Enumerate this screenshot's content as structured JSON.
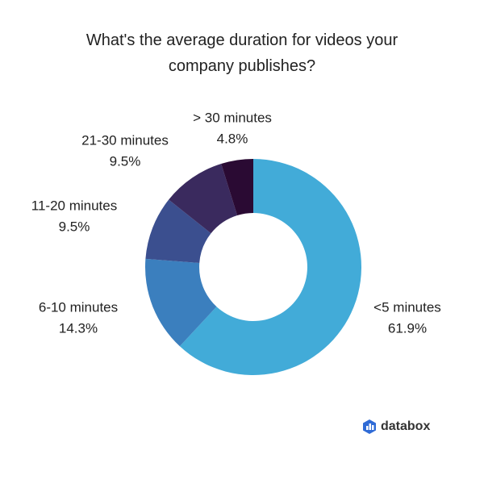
{
  "chart_data": {
    "type": "donut",
    "title": "What's the average duration for videos your company publishes?",
    "categories": [
      "<5 minutes",
      "6-10 minutes",
      "11-20 minutes",
      "21-30 minutes",
      "> 30 minutes"
    ],
    "values": [
      61.9,
      14.3,
      9.5,
      9.5,
      4.8
    ],
    "value_labels": [
      "61.9%",
      "14.3%",
      "9.5%",
      "9.5%",
      "4.8%"
    ],
    "colors": [
      "#42abd8",
      "#3b7fbe",
      "#3b4f8f",
      "#3a2a5e",
      "#2a0a33"
    ]
  },
  "logo_text": "databox"
}
